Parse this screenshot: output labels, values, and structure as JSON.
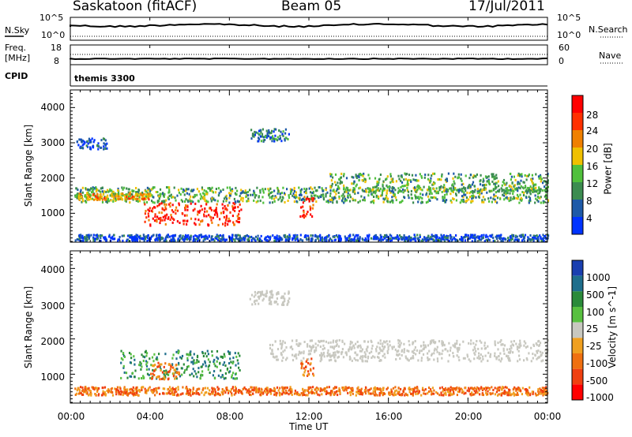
{
  "header": {
    "station": "Saskatoon (fitACF)",
    "beam": "Beam 05",
    "date": "17/Jul/2011"
  },
  "strip_panels": {
    "nsky_label": "N.Sky",
    "nsky_ticks": [
      "10^5",
      "10^0"
    ],
    "nsearch_label": "N.Search",
    "nsearch_ticks": [
      "10^5",
      "10^0"
    ],
    "freq_label": "Freq.",
    "freq_unit": "[MHz]",
    "freq_ticks": [
      "18",
      "8"
    ],
    "nave_label": "Nave",
    "nave_ticks": [
      "60",
      "0"
    ],
    "cpid_label": "CPID",
    "cpid_value": "themis 3300"
  },
  "colors": {
    "power_scale": [
      "#0033ff",
      "#1e5aa8",
      "#3c8c50",
      "#50c03c",
      "#f0c000",
      "#f08000",
      "#ff3000",
      "#ff0000"
    ],
    "velocity_scale": [
      "#1a3fb0",
      "#1e6e8c",
      "#2a8a3a",
      "#58c040",
      "#c8c8c0",
      "#f0a020",
      "#f07010",
      "#f04010",
      "#ff0000"
    ],
    "ground_scatter": "#c8c8c0"
  },
  "chart_data": [
    {
      "type": "line",
      "name": "N.Sky / N.Search strip",
      "x": [
        "00:00",
        "04:00",
        "08:00",
        "12:00",
        "16:00",
        "20:00",
        "00:00"
      ],
      "y_left_ticks": [
        "10^5",
        "10^0"
      ],
      "y_right_ticks": [
        "10^5",
        "10^0"
      ]
    },
    {
      "type": "line",
      "name": "Freq / Nave strip",
      "y_left_ticks": [
        "18",
        "8"
      ],
      "y_right_ticks": [
        "60",
        "0"
      ]
    },
    {
      "type": "heatmap",
      "xlabel": "Time UT",
      "ylabel": "Slant Range [km]",
      "x_ticks": [
        "00:00",
        "04:00",
        "08:00",
        "12:00",
        "16:00",
        "20:00",
        "00:00"
      ],
      "xlim": [
        0,
        24
      ],
      "ylim": [
        180,
        4500
      ],
      "y_ticks": [
        1000,
        2000,
        3000,
        4000
      ],
      "colorbar_label": "Power [dB]",
      "colorbar_ticks": [
        4,
        8,
        12,
        16,
        20,
        24,
        28
      ],
      "features": [
        {
          "t0": 0.2,
          "t1": 24,
          "r": 1550,
          "w": 220,
          "level": 12
        },
        {
          "t0": 0.2,
          "t1": 4.0,
          "r": 1500,
          "w": 90,
          "level": 22
        },
        {
          "t0": 3.7,
          "t1": 8.6,
          "r": 1000,
          "w": 320,
          "level": 28
        },
        {
          "t0": 0.3,
          "t1": 1.8,
          "r": 3000,
          "w": 150,
          "level": 6
        },
        {
          "t0": 9.0,
          "t1": 11.0,
          "r": 3250,
          "w": 180,
          "level": 10
        },
        {
          "t0": 13.0,
          "t1": 24,
          "r": 1900,
          "w": 260,
          "level": 14
        },
        {
          "t0": 11.5,
          "t1": 12.2,
          "r": 1200,
          "w": 300,
          "level": 28
        },
        {
          "t0": 0.2,
          "t1": 24,
          "r": 330,
          "w": 90,
          "level": 6
        }
      ]
    },
    {
      "type": "heatmap",
      "xlabel": "Time UT",
      "ylabel": "Slant Range [km]",
      "x_ticks": [
        "00:00",
        "04:00",
        "08:00",
        "12:00",
        "16:00",
        "20:00",
        "00:00"
      ],
      "xlim": [
        0,
        24
      ],
      "ylim": [
        180,
        4500
      ],
      "y_ticks": [
        1000,
        2000,
        3000,
        4000
      ],
      "colorbar_label": "Velocity [m s^-1]",
      "colorbar_ticks": [
        1000,
        500,
        100,
        25,
        -25,
        -100,
        -500,
        -1000
      ],
      "features": [
        {
          "t0": 2.5,
          "t1": 8.5,
          "r": 1300,
          "w": 400,
          "level": 100
        },
        {
          "t0": 4.0,
          "t1": 5.5,
          "r": 1100,
          "w": 250,
          "level": -100
        },
        {
          "t0": 11.5,
          "t1": 12.2,
          "r": 1200,
          "w": 300,
          "level": -100
        },
        {
          "t0": 10.0,
          "t1": 24,
          "r": 1700,
          "w": 300,
          "level": 0
        },
        {
          "t0": 9.0,
          "t1": 11.0,
          "r": 3200,
          "w": 200,
          "level": 0
        },
        {
          "t0": 0.2,
          "t1": 24,
          "r": 550,
          "w": 120,
          "level": -100
        }
      ]
    }
  ]
}
